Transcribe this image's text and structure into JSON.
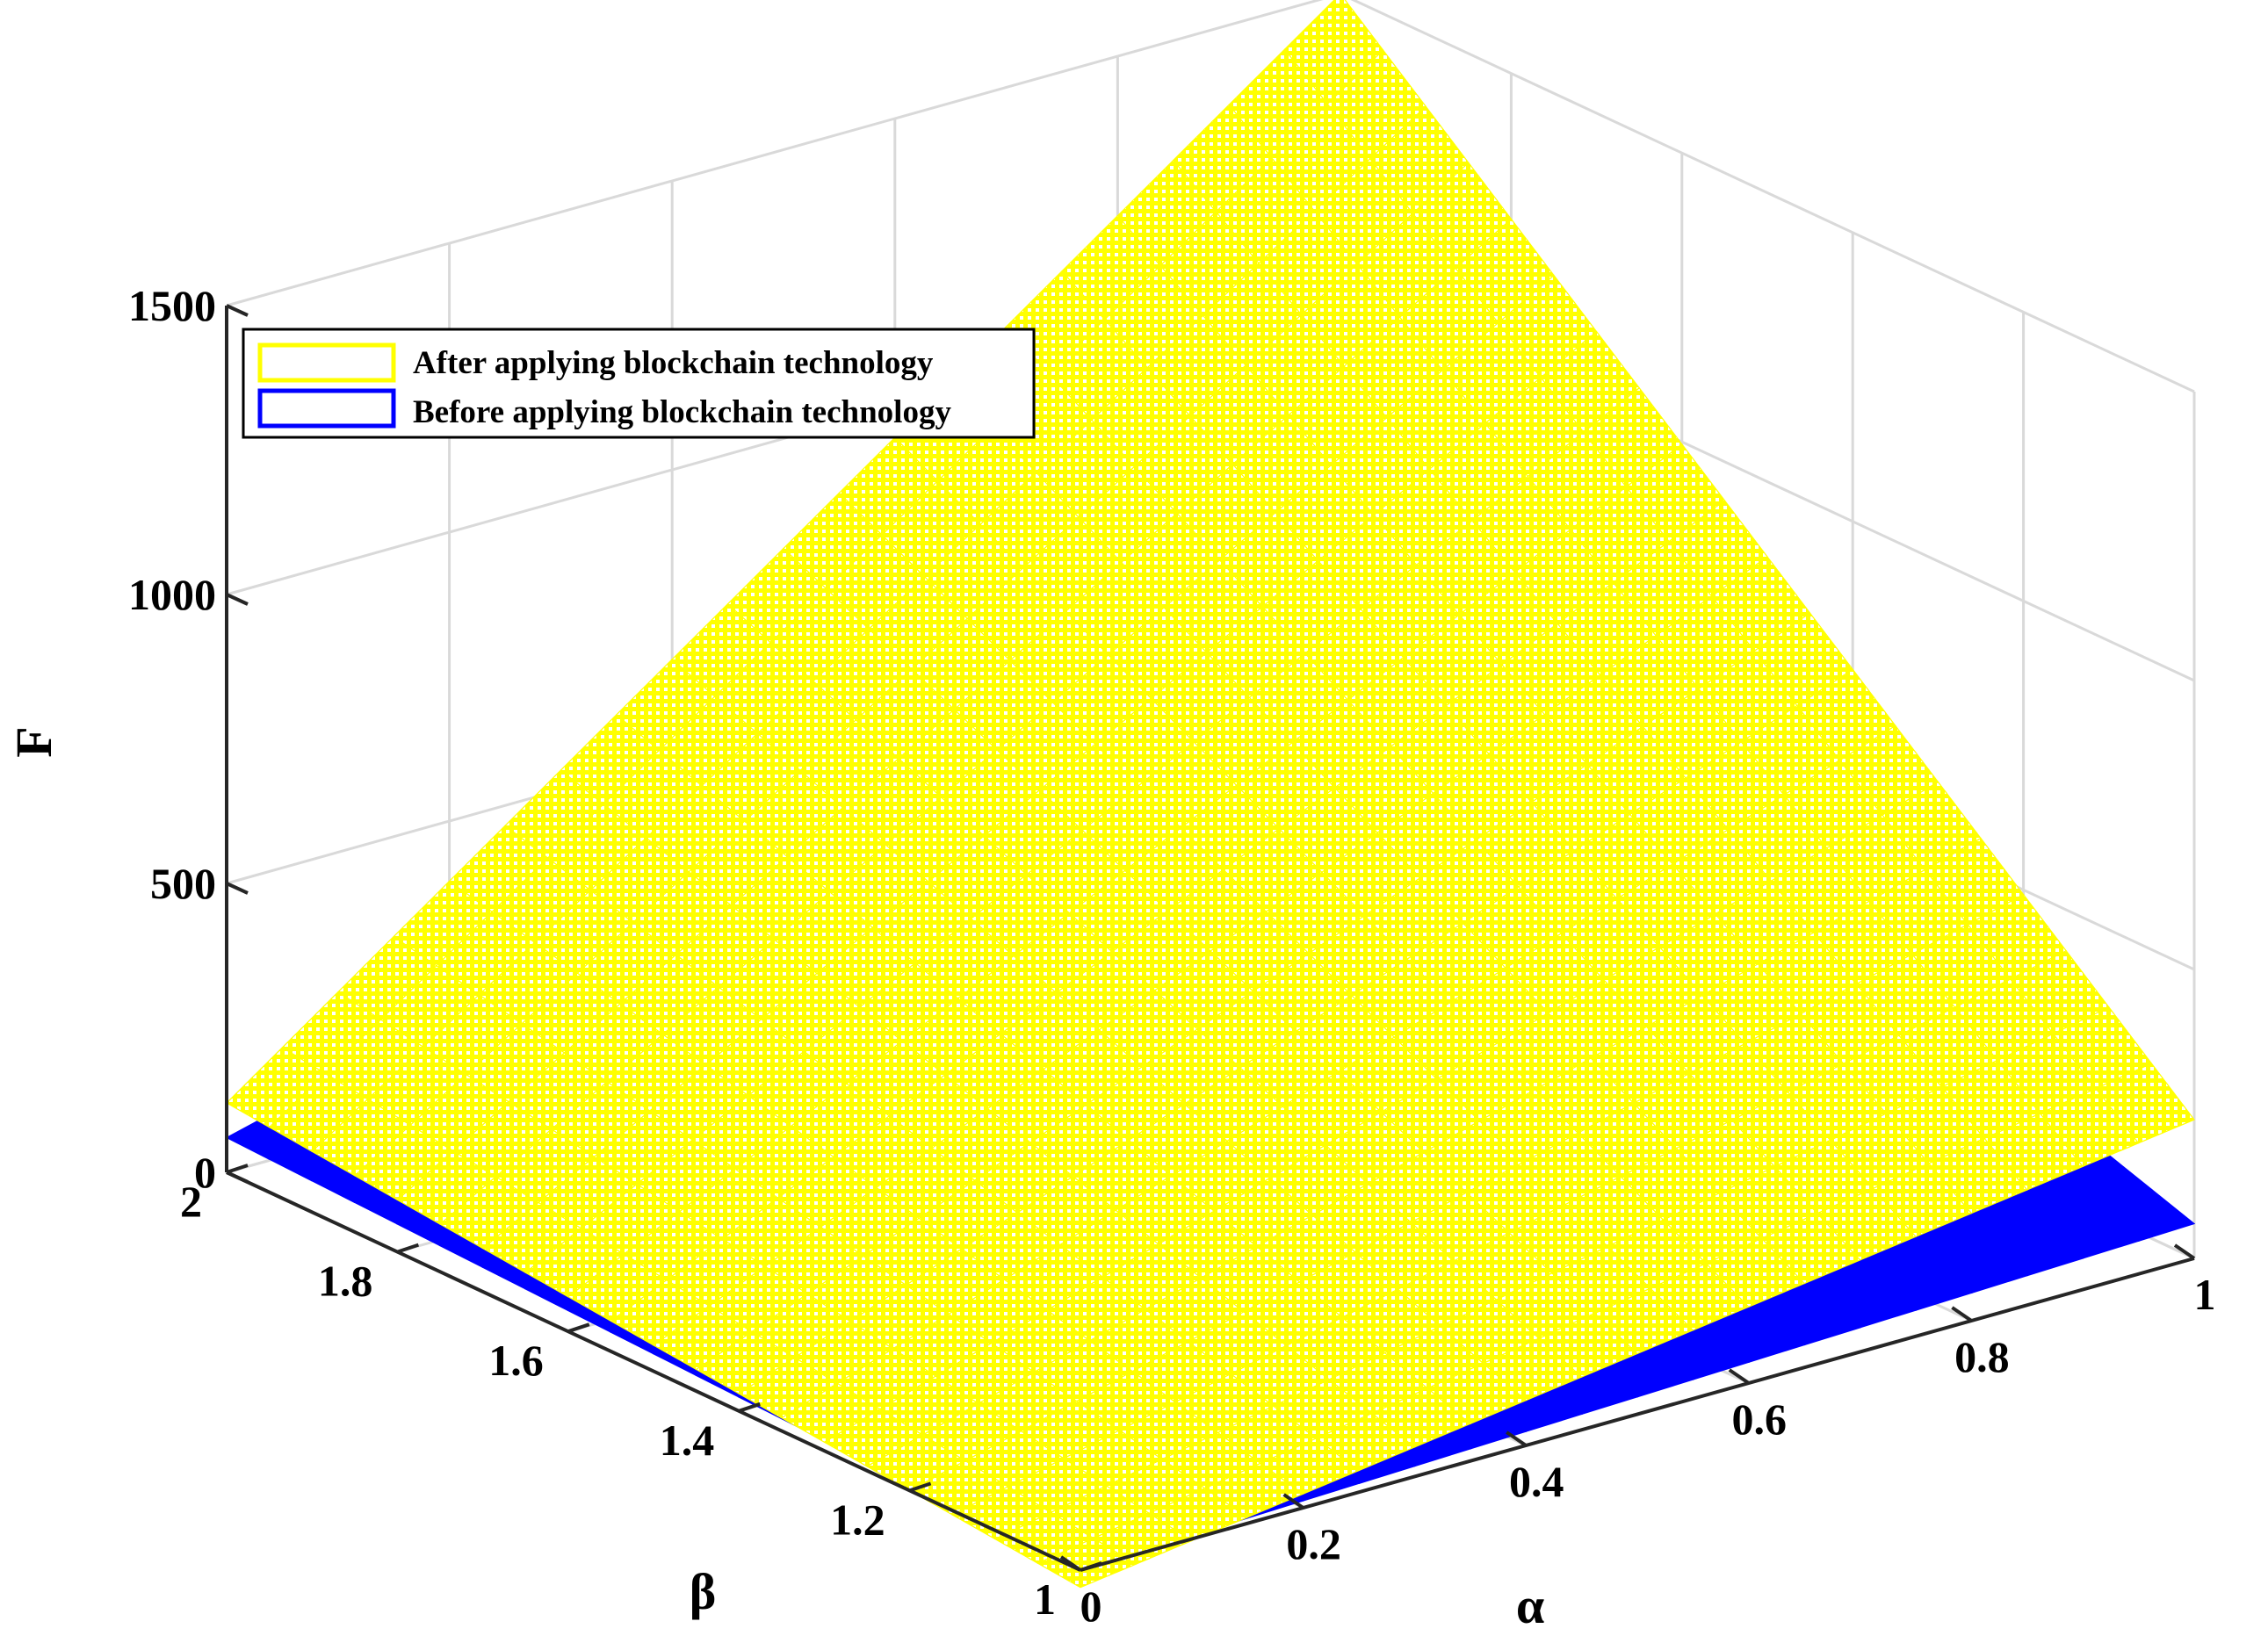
{
  "chart_data": {
    "type": "surface",
    "title": "",
    "xlabel": "α",
    "ylabel": "β",
    "zlabel": "F",
    "xlim": [
      0,
      1
    ],
    "ylim": [
      1,
      2
    ],
    "zlim": [
      0,
      1500
    ],
    "x_ticks": [
      "0",
      "0.2",
      "0.4",
      "0.6",
      "0.8",
      "1"
    ],
    "y_ticks": [
      "1",
      "1.2",
      "1.4",
      "1.6",
      "1.8",
      "2"
    ],
    "z_ticks": [
      "0",
      "500",
      "1000",
      "1500"
    ],
    "grid": true,
    "legend_position": "top-left",
    "series": [
      {
        "name": "After applying blockchain technology",
        "color": "#ffff00",
        "corners": [
          {
            "alpha": 0,
            "beta": 1,
            "F": -30
          },
          {
            "alpha": 1,
            "beta": 1,
            "F": 240
          },
          {
            "alpha": 0,
            "beta": 2,
            "F": 120
          },
          {
            "alpha": 1,
            "beta": 2,
            "F": 1500
          }
        ]
      },
      {
        "name": "Before applying blockchain technology",
        "color": "#0000ff",
        "corners": [
          {
            "alpha": 0,
            "beta": 1,
            "F": 0
          },
          {
            "alpha": 1,
            "beta": 1,
            "F": 60
          },
          {
            "alpha": 0,
            "beta": 2,
            "F": 60
          },
          {
            "alpha": 1,
            "beta": 2,
            "F": 560
          }
        ]
      }
    ]
  }
}
